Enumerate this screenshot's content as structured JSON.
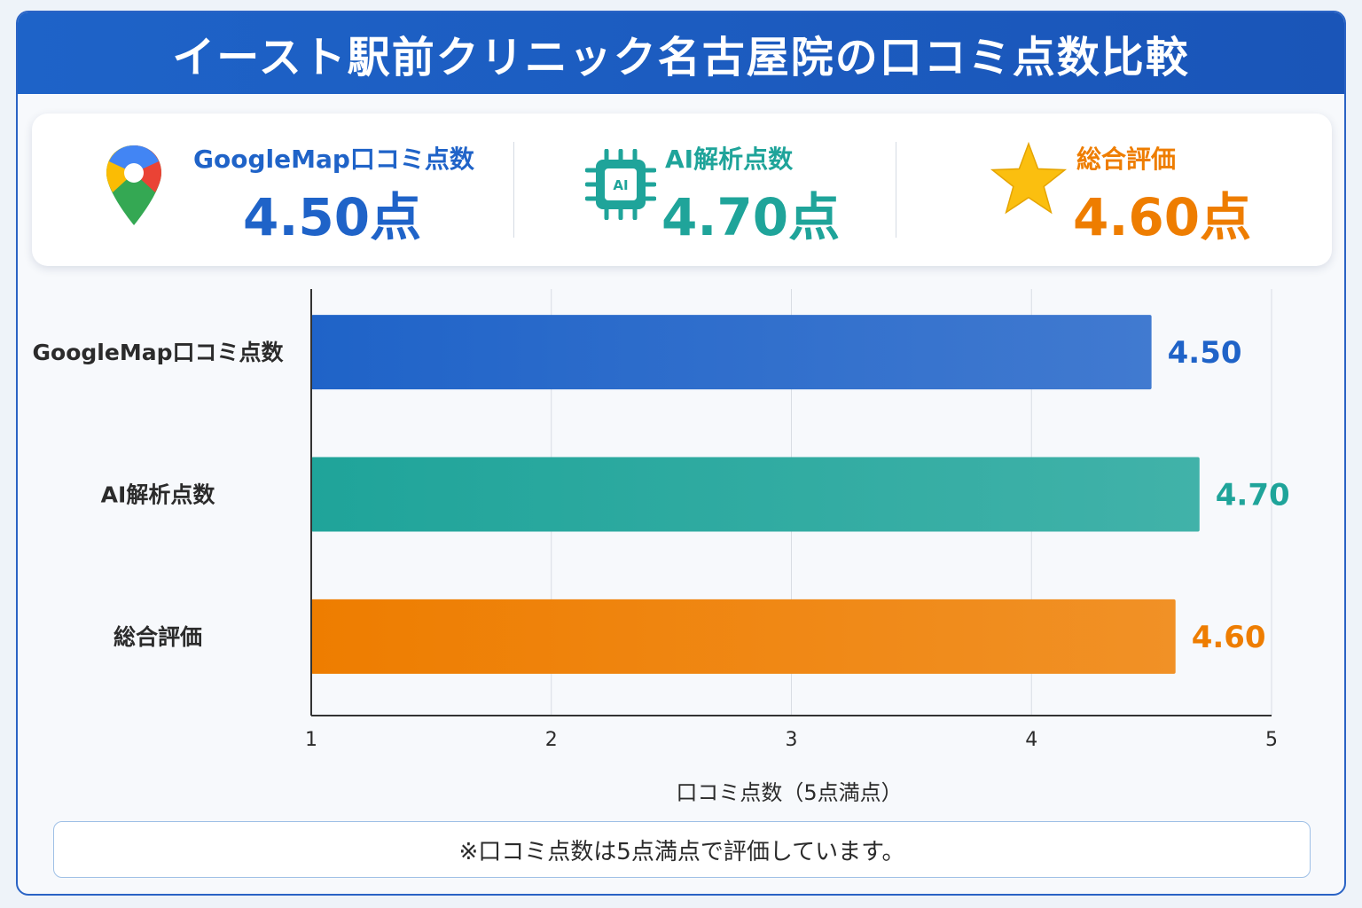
{
  "title": "イースト駅前クリニック名古屋院の口コミ点数比較",
  "summary": {
    "google": {
      "label": "GoogleMap口コミ点数",
      "value": "4.50点",
      "icon": "map-pin-icon",
      "color": "#1f63c8"
    },
    "ai": {
      "label": "AI解析点数",
      "value": "4.70点",
      "icon": "ai-chip-icon",
      "icon_text": "AI",
      "color": "#1fa49a"
    },
    "total": {
      "label": "総合評価",
      "value": "4.60点",
      "icon": "star-icon",
      "color": "#ee7d00"
    }
  },
  "chart_data": {
    "type": "bar",
    "orientation": "horizontal",
    "categories": [
      "GoogleMap口コミ点数",
      "AI解析点数",
      "総合評価"
    ],
    "values": [
      4.5,
      4.7,
      4.6
    ],
    "value_labels": [
      "4.50",
      "4.70",
      "4.60"
    ],
    "colors": [
      "#1f63c8",
      "#1fa49a",
      "#ee7d00"
    ],
    "xlim": [
      1,
      5
    ],
    "xticks": [
      "1",
      "2",
      "3",
      "4",
      "5"
    ],
    "xlabel": "口コミ点数（5点満点）",
    "grid": true
  },
  "footnote": "※口コミ点数は5点満点で評価しています。"
}
